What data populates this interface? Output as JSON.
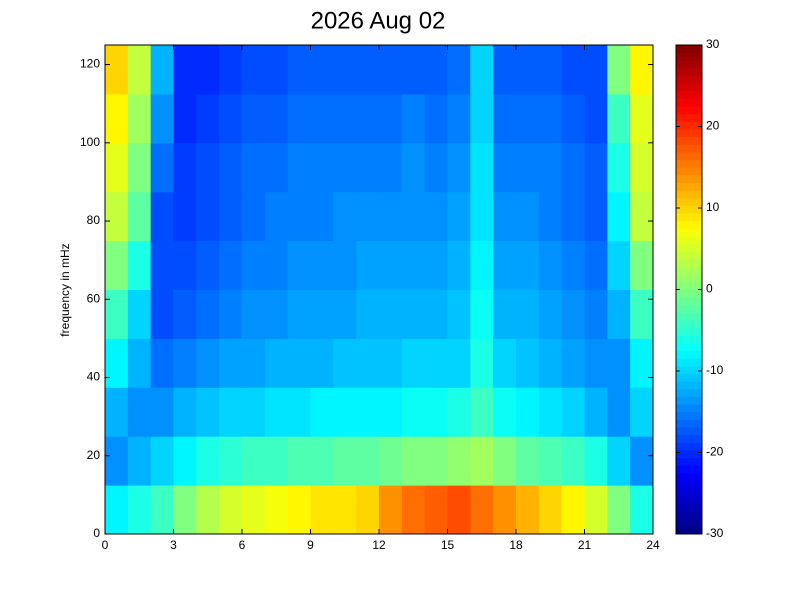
{
  "chart_data": {
    "type": "heatmap",
    "title": "2026 Aug 02",
    "y_label": "frequency in mHz",
    "colormap": "jet",
    "xlim": [
      0,
      24
    ],
    "xticks": [
      0,
      3,
      6,
      9,
      12,
      15,
      18,
      21,
      24
    ],
    "ylim": [
      0,
      125
    ],
    "yticks": [
      0,
      20,
      40,
      60,
      80,
      100,
      120
    ],
    "clim": [
      -30,
      30
    ],
    "colorbar_ticks": [
      -30,
      -20,
      -10,
      0,
      10,
      20,
      30
    ],
    "x_edges": [
      0,
      1,
      2,
      3,
      4,
      5,
      6,
      7,
      8,
      9,
      10,
      11,
      12,
      13,
      14,
      15,
      16,
      17,
      18,
      19,
      20,
      21,
      22,
      23,
      24
    ],
    "y_edges": [
      0,
      12.5,
      25,
      37.5,
      50,
      62.5,
      75,
      87.5,
      100,
      112.5,
      125
    ],
    "z": [
      [
        -8,
        -6,
        -4,
        0,
        3,
        5,
        6,
        7,
        8,
        9,
        9,
        10,
        14,
        16,
        17,
        18,
        16,
        14,
        12,
        10,
        8,
        5,
        0,
        -6
      ],
      [
        -14,
        -12,
        -10,
        -8,
        -6,
        -5,
        -4,
        -4,
        -3,
        -3,
        -2,
        -2,
        -1,
        0,
        0,
        1,
        2,
        0,
        -2,
        -3,
        -4,
        -6,
        -10,
        -14
      ],
      [
        -12,
        -14,
        -14,
        -12,
        -11,
        -10,
        -10,
        -9,
        -9,
        -8,
        -8,
        -8,
        -8,
        -7,
        -7,
        -6,
        -4,
        -7,
        -8,
        -9,
        -10,
        -12,
        -14,
        -10
      ],
      [
        -8,
        -12,
        -16,
        -15,
        -14,
        -13,
        -13,
        -12,
        -12,
        -12,
        -11,
        -11,
        -11,
        -10,
        -10,
        -10,
        -6,
        -10,
        -11,
        -12,
        -13,
        -14,
        -14,
        -8
      ],
      [
        -4,
        -10,
        -18,
        -17,
        -16,
        -15,
        -14,
        -14,
        -13,
        -13,
        -13,
        -12,
        -12,
        -12,
        -12,
        -11,
        -7,
        -12,
        -12,
        -13,
        -14,
        -15,
        -12,
        -4
      ],
      [
        0,
        -6,
        -18,
        -18,
        -17,
        -16,
        -15,
        -15,
        -14,
        -14,
        -14,
        -13,
        -13,
        -13,
        -13,
        -12,
        -8,
        -13,
        -13,
        -14,
        -15,
        -16,
        -10,
        0
      ],
      [
        4,
        -2,
        -18,
        -19,
        -18,
        -17,
        -16,
        -15,
        -15,
        -15,
        -14,
        -14,
        -14,
        -14,
        -14,
        -13,
        -9,
        -14,
        -14,
        -15,
        -16,
        -17,
        -8,
        4
      ],
      [
        6,
        0,
        -16,
        -19,
        -18,
        -17,
        -16,
        -16,
        -15,
        -15,
        -15,
        -15,
        -15,
        -14,
        -15,
        -14,
        -9,
        -15,
        -15,
        -15,
        -16,
        -17,
        -6,
        5
      ],
      [
        8,
        2,
        -14,
        -20,
        -19,
        -18,
        -17,
        -17,
        -16,
        -16,
        -16,
        -16,
        -16,
        -15,
        -16,
        -15,
        -10,
        -16,
        -16,
        -16,
        -17,
        -18,
        -4,
        6
      ],
      [
        10,
        4,
        -12,
        -20,
        -20,
        -19,
        -18,
        -18,
        -17,
        -17,
        -17,
        -17,
        -17,
        -17,
        -17,
        -16,
        -10,
        -17,
        -17,
        -17,
        -18,
        -18,
        0,
        8
      ]
    ]
  }
}
